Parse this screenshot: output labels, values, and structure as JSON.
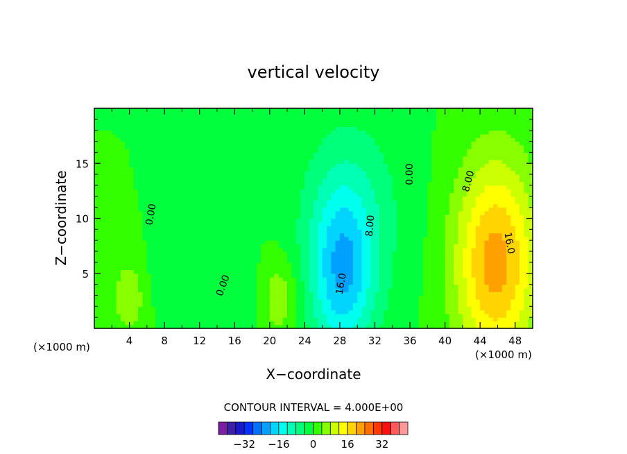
{
  "chart_data": {
    "type": "heatmap",
    "title": "vertical velocity",
    "xlabel": "X−coordinate",
    "ylabel": "Z−coordinate",
    "x_unit_left": "(×1000 m)",
    "x_unit_right": "(×1000 m)",
    "xlim": [
      0,
      50
    ],
    "ylim": [
      0,
      20
    ],
    "x_ticks": [
      "4",
      "8",
      "12",
      "16",
      "20",
      "24",
      "28",
      "32",
      "36",
      "40",
      "44",
      "48"
    ],
    "y_ticks": [
      "5",
      "10",
      "15"
    ],
    "contour_interval_text": "CONTOUR INTERVAL = 4.000E+00",
    "contour_labels": [
      {
        "text": "0.00",
        "x": 6.8,
        "y": 10.3,
        "rotate": -80
      },
      {
        "text": "0.00",
        "x": 15.0,
        "y": 3.8,
        "rotate": -70
      },
      {
        "text": "0.00",
        "x": 36.3,
        "y": 14.0,
        "rotate": -90
      },
      {
        "text": "8.00",
        "x": 43.0,
        "y": 13.3,
        "rotate": -75
      },
      {
        "text": "16.0",
        "x": 47.0,
        "y": 7.7,
        "rotate": 80
      },
      {
        "text": "8.00",
        "x": 31.8,
        "y": 9.3,
        "rotate": -85
      },
      {
        "text": "16.0",
        "x": 28.5,
        "y": 4.0,
        "rotate": -80
      }
    ],
    "colorbar": {
      "colors": [
        "#7b1fa2",
        "#3d1fa8",
        "#1a1acc",
        "#0033ff",
        "#0070ff",
        "#00a0ff",
        "#00d4ff",
        "#00ffee",
        "#00ffb4",
        "#00ff7a",
        "#00ff3c",
        "#33ff00",
        "#88ff00",
        "#ccff00",
        "#ffff00",
        "#ffd400",
        "#ffa000",
        "#ff7000",
        "#ff3800",
        "#ff1010",
        "#ff5a5a",
        "#ff9999"
      ],
      "tick_labels": [
        {
          "label": "−32",
          "value": -32
        },
        {
          "label": "−16",
          "value": -16
        },
        {
          "label": "0",
          "value": 0
        },
        {
          "label": "16",
          "value": 16
        },
        {
          "label": "32",
          "value": 32
        }
      ],
      "vmin": -44,
      "vmax": 44
    },
    "features": [
      {
        "kind": "updraft",
        "x": 45.8,
        "z": 6.0,
        "sx": 3.3,
        "sz": 6.5,
        "amp": 22
      },
      {
        "kind": "downdraft",
        "x": 28.3,
        "z": 5.0,
        "sx": 2.6,
        "sz": 5.5,
        "amp": -18
      },
      {
        "kind": "downdraft",
        "x": 29.5,
        "z": 11.0,
        "sx": 4.5,
        "sz": 6.5,
        "amp": -6
      },
      {
        "kind": "updraft",
        "x": 4.0,
        "z": 3.0,
        "sx": 1.5,
        "sz": 2.5,
        "amp": 7
      },
      {
        "kind": "updraft",
        "x": 21.0,
        "z": 2.8,
        "sx": 1.6,
        "sz": 2.6,
        "amp": 8
      },
      {
        "kind": "downdraft",
        "x": 9.0,
        "z": 4.5,
        "sx": 2.5,
        "sz": 2.5,
        "amp": -3
      },
      {
        "kind": "downdraft",
        "x": 16.5,
        "z": 3.0,
        "sx": 3.0,
        "sz": 2.5,
        "amp": -3
      }
    ]
  }
}
